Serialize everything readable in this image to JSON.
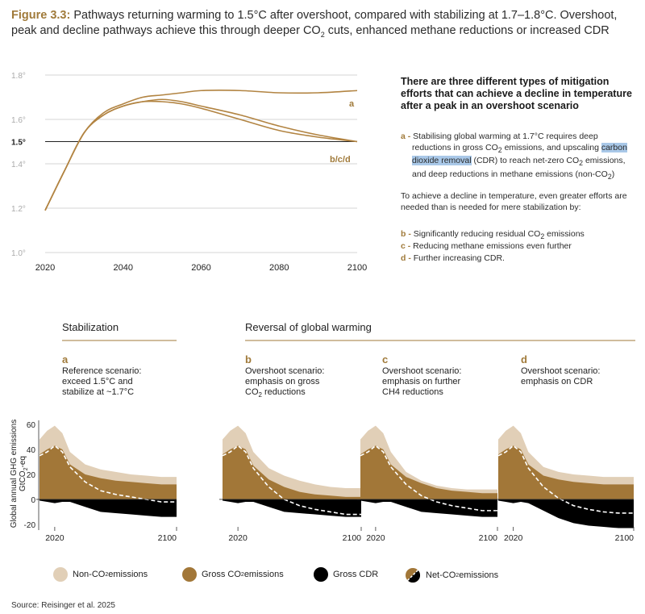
{
  "figure": {
    "label": "Figure 3.3:",
    "title_line1": "Pathways returning warming to 1.5°C after overshoot, compared with stabilizing at 1.7–1.8°C. Overshoot,",
    "title_line2_a": "peak and decline pathways achieve this through deeper CO",
    "title_line2_sub": "2",
    "title_line2_b": " cuts, enhanced methane reductions or increased CDR"
  },
  "side_panel": {
    "heading": "There are three different types of mitigation efforts that can achieve a decline in temperature after a peak in an overshoot scenario",
    "item_a_key": "a -",
    "item_a_text1": " Stabilising global warming at 1.7°C requires deep",
    "item_a_text2": "reductions in gross CO",
    "item_a_text3": " emissions, and upscaling ",
    "item_a_hl1": "carbon",
    "item_a_hl2": "dioxide removal",
    "item_a_text4": " (CDR) to reach net-zero CO",
    "item_a_text5": " emissions,",
    "item_a_text6": "and deep reductions in methane emissions (non-CO",
    "item_a_text7": ")",
    "sub2": "2",
    "para": "To achieve a decline in temperature, even greater efforts are needed than is needed for mere stabilization by:",
    "item_b_key": "b -",
    "item_b_text": " Significantly reducing residual CO",
    "item_b_text2": " emissions",
    "item_c_key": "c -",
    "item_c_text": " Reducing methane emissions even further",
    "item_d_key": "d -",
    "item_d_text": " Further increasing CDR."
  },
  "panels": {
    "stabilization": "Stabilization",
    "reversal": "Reversal of global warming"
  },
  "scenarios": [
    {
      "letter": "a",
      "line1": "Reference scenario:",
      "line2": "exceed 1.5°C and",
      "line3": "stabilize at ~1.7°C"
    },
    {
      "letter": "b",
      "line1": "Overshoot scenario:",
      "line2": "emphasis on gross",
      "line3a": "CO",
      "line3sub": "2",
      "line3b": " reductions"
    },
    {
      "letter": "c",
      "line1": "Overshoot scenario:",
      "line2": "emphasis on further",
      "line3": "CH4 reductions"
    },
    {
      "letter": "d",
      "line1": "Overshoot scenario:",
      "line2": "emphasis on CDR",
      "line3": ""
    }
  ],
  "bottom_axis": {
    "ylabel_line1": "Global annual GHG emissions",
    "ylabel_line2a": "GtCO",
    "ylabel_line2sub": "2",
    "ylabel_line2b": "-eq",
    "yticks": [
      "60",
      "40",
      "20",
      "0",
      "-20"
    ],
    "xticks": [
      "2020",
      "2100"
    ]
  },
  "legend": {
    "non_co2": "Non-CO",
    "non_co2_b": " emissions",
    "gross_co2": "Gross CO",
    "gross_co2_b": " emissions",
    "gross_cdr": "Gross CDR",
    "net_co2": "Net-CO",
    "net_co2_b": " emissions",
    "sub": "2"
  },
  "source": "Source: Reisinger et al. 2025",
  "colors": {
    "gold": "#a07a3a",
    "line": "#b28442",
    "non_co2": "#e1cfb7",
    "gross_co2": "#a27738",
    "cdr": "#000000"
  },
  "chart_data": [
    {
      "type": "line",
      "x": [
        2020,
        2025,
        2030,
        2035,
        2040,
        2045,
        2050,
        2055,
        2060,
        2070,
        2080,
        2090,
        2100
      ],
      "xticks": [
        "2020",
        "2040",
        "2060",
        "2080",
        "2100"
      ],
      "yticks": [
        "1.8°",
        "1.6°",
        "1.5°",
        "1.4°",
        "1.2°",
        "1.0°"
      ],
      "ylim": [
        1.0,
        1.8
      ],
      "series": [
        {
          "name": "a",
          "values": [
            1.19,
            1.37,
            1.54,
            1.63,
            1.67,
            1.7,
            1.71,
            1.72,
            1.73,
            1.73,
            1.72,
            1.72,
            1.73
          ]
        },
        {
          "name": "b/c/d",
          "values": [
            1.19,
            1.37,
            1.54,
            1.62,
            1.66,
            1.68,
            1.69,
            1.68,
            1.66,
            1.62,
            1.57,
            1.53,
            1.5
          ]
        },
        {
          "name": "",
          "values": [
            1.19,
            1.37,
            1.54,
            1.62,
            1.66,
            1.68,
            1.68,
            1.67,
            1.65,
            1.6,
            1.55,
            1.52,
            1.5
          ]
        }
      ]
    },
    {
      "type": "area",
      "scenarios": [
        "a",
        "b",
        "c",
        "d"
      ],
      "x": [
        2010,
        2015,
        2020,
        2025,
        2030,
        2040,
        2050,
        2060,
        2070,
        2080,
        2090,
        2100
      ],
      "ylim": [
        -22,
        62
      ],
      "series_by_scenario": {
        "a": {
          "non_co2": [
            48,
            55,
            59,
            53,
            38,
            28,
            24,
            22,
            20,
            19,
            18,
            18
          ],
          "gross_co2": [
            36,
            40,
            43,
            40,
            28,
            20,
            17,
            15,
            14,
            13,
            12,
            12
          ],
          "gross_cdr": [
            -1,
            -2,
            -3,
            -2,
            -2,
            -6,
            -10,
            -11,
            -12,
            -13,
            -14,
            -14
          ],
          "net_co2": [
            35,
            38,
            43,
            38,
            26,
            14,
            7,
            4,
            2,
            0,
            -2,
            -2
          ]
        },
        "b": {
          "non_co2": [
            48,
            55,
            59,
            53,
            38,
            25,
            19,
            15,
            12,
            10,
            9,
            9
          ],
          "gross_co2": [
            36,
            40,
            43,
            40,
            27,
            16,
            10,
            6,
            4,
            3,
            2,
            2
          ],
          "gross_cdr": [
            -1,
            -2,
            -3,
            -2,
            -2,
            -6,
            -10,
            -11,
            -12,
            -13,
            -14,
            -14
          ],
          "net_co2": [
            35,
            38,
            43,
            38,
            25,
            10,
            0,
            -5,
            -8,
            -10,
            -12,
            -12
          ]
        },
        "c": {
          "non_co2": [
            48,
            55,
            59,
            53,
            38,
            22,
            15,
            11,
            9,
            8,
            8,
            8
          ],
          "gross_co2": [
            36,
            40,
            43,
            40,
            28,
            18,
            13,
            9,
            7,
            6,
            5,
            5
          ],
          "gross_cdr": [
            -1,
            -2,
            -3,
            -2,
            -2,
            -6,
            -10,
            -11,
            -12,
            -13,
            -14,
            -14
          ],
          "net_co2": [
            35,
            38,
            43,
            38,
            26,
            12,
            3,
            -2,
            -5,
            -7,
            -9,
            -9
          ]
        },
        "d": {
          "non_co2": [
            48,
            55,
            59,
            53,
            38,
            26,
            22,
            20,
            19,
            18,
            18,
            18
          ],
          "gross_co2": [
            36,
            40,
            43,
            40,
            28,
            19,
            16,
            14,
            13,
            12,
            12,
            12
          ],
          "gross_cdr": [
            -1,
            -2,
            -3,
            -2,
            -3,
            -9,
            -15,
            -19,
            -21,
            -22,
            -23,
            -23
          ],
          "net_co2": [
            35,
            38,
            43,
            38,
            25,
            10,
            1,
            -5,
            -8,
            -10,
            -11,
            -11
          ]
        }
      }
    }
  ]
}
